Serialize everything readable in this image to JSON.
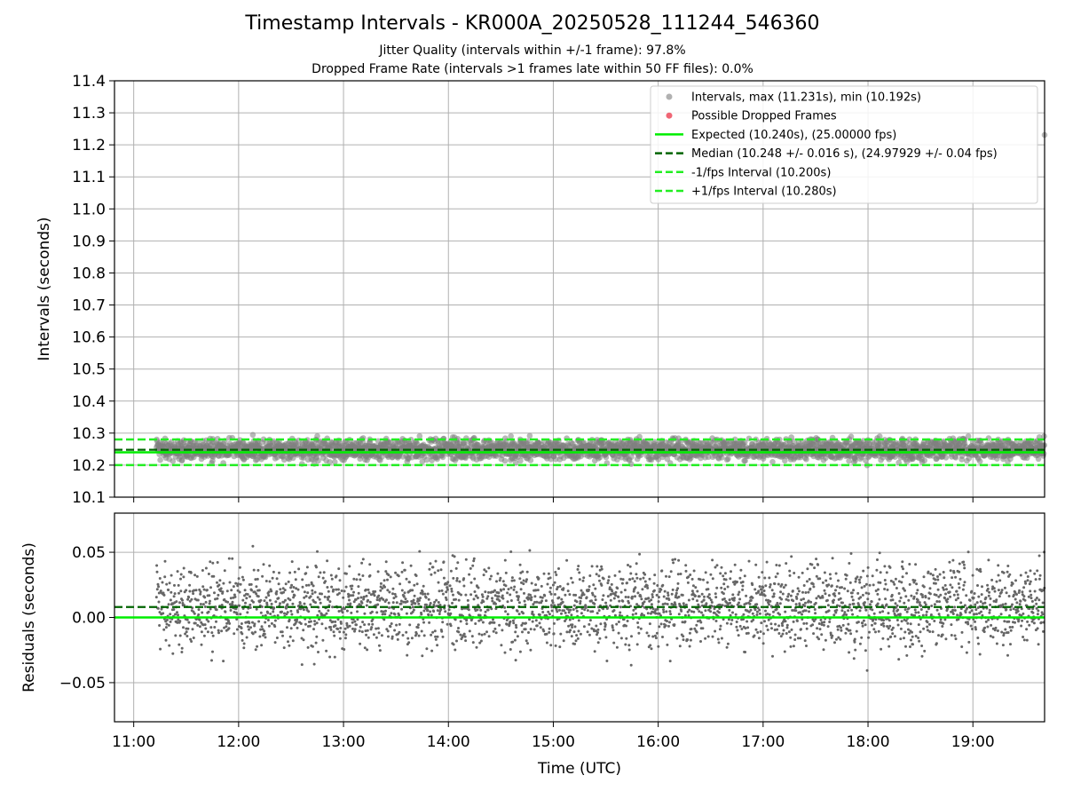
{
  "figure": {
    "title": "Timestamp Intervals - KR000A_20250528_111244_546360",
    "subtitle_1": "Jitter Quality (intervals within +/-1 frame): 97.8%",
    "subtitle_2": "Dropped Frame Rate (intervals >1 frames late within 50 FF files): 0.0%"
  },
  "colors": {
    "intervals": "#808080",
    "dropped": "#ee5566",
    "expected": "#00ee00",
    "median": "#006400",
    "fps_bounds": "#22ee22",
    "grid": "#b0b0b0"
  },
  "chart_data": [
    {
      "type": "scatter",
      "panel": "intervals",
      "ylabel": "Intervals (seconds)",
      "ylim": [
        10.1,
        11.4
      ],
      "yticks": [
        10.1,
        10.2,
        10.3,
        10.4,
        10.5,
        10.6,
        10.7,
        10.8,
        10.9,
        11.0,
        11.1,
        11.2,
        11.3,
        11.4
      ],
      "ytick_labels": [
        "10.1",
        "10.2",
        "10.3",
        "10.4",
        "10.5",
        "10.6",
        "10.7",
        "10.8",
        "10.9",
        "11.0",
        "11.1",
        "11.2",
        "11.3",
        "11.4"
      ],
      "xlim": [
        "10:49",
        "19:41"
      ],
      "xticks": [
        "11:00",
        "12:00",
        "13:00",
        "14:00",
        "15:00",
        "16:00",
        "17:00",
        "18:00",
        "19:00"
      ],
      "grid": true,
      "legend_position": "top-right",
      "legend": [
        {
          "label": "Intervals, max (11.231s), min (10.192s)",
          "kind": "dot",
          "color": "#a8a8a8"
        },
        {
          "label": "Possible Dropped Frames",
          "kind": "dot",
          "color": "#ee5566"
        },
        {
          "label": "Expected (10.240s), (25.00000 fps)",
          "kind": "solid",
          "color": "#00ee00"
        },
        {
          "label": "Median (10.248 +/- 0.016 s), (24.97929 +/- 0.04 fps)",
          "kind": "dashed",
          "color": "#006400"
        },
        {
          "label": "-1/fps Interval (10.200s)",
          "kind": "dashed",
          "color": "#22ee22"
        },
        {
          "label": "+1/fps Interval (10.280s)",
          "kind": "dashed",
          "color": "#22ee22"
        }
      ],
      "lines": {
        "expected": 10.24,
        "median": 10.248,
        "minus_1_fps": 10.2,
        "plus_1_fps": 10.28
      },
      "series_summary": {
        "x_start": "11:13",
        "x_end": "19:41",
        "interval_s": 10.24,
        "median": 10.248,
        "spread_std": 0.016,
        "max": 11.231,
        "min": 10.192,
        "max_point": {
          "x": "19:41",
          "y": 11.231
        },
        "dropped_frames_count": 0
      }
    },
    {
      "type": "scatter",
      "panel": "residuals",
      "xlabel": "Time (UTC)",
      "ylabel": "Residuals (seconds)",
      "ylim": [
        -0.08,
        0.08
      ],
      "yticks": [
        -0.05,
        0.0,
        0.05
      ],
      "ytick_labels": [
        "−0.05",
        "0.00",
        "0.05"
      ],
      "xlim": [
        "10:49",
        "19:41"
      ],
      "xticks": [
        "11:00",
        "12:00",
        "13:00",
        "14:00",
        "15:00",
        "16:00",
        "17:00",
        "18:00",
        "19:00"
      ],
      "grid": true,
      "lines": {
        "zero": 0.0,
        "median_offset": 0.008
      },
      "series_summary": {
        "x_start": "11:13",
        "x_end": "19:41",
        "mean": 0.008,
        "spread_std": 0.016,
        "max": 0.062,
        "min": -0.047
      }
    }
  ]
}
